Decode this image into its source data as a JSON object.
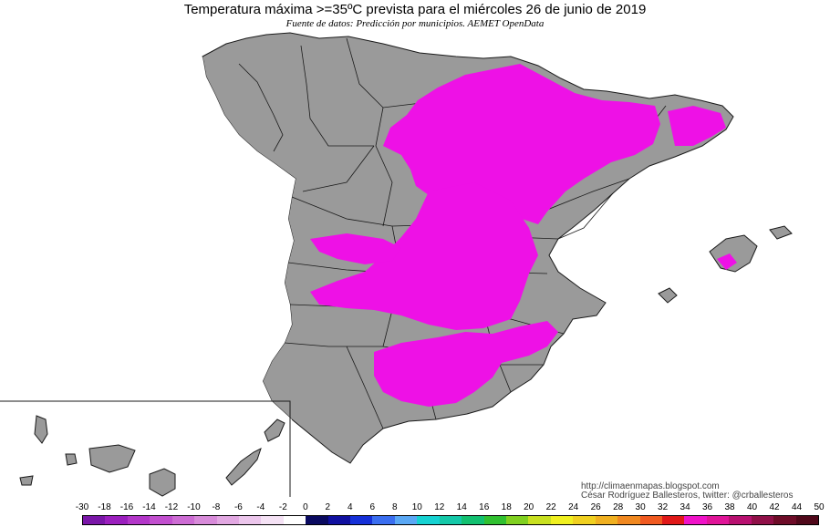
{
  "title": "Temperatura máxima >=35ºC prevista para el miércoles 26 de junio de 2019",
  "subtitle": "Fuente de datos: Predicción por municipios. AEMET OpenData",
  "credits": {
    "blog": "http://climaenmapas.blogspot.com",
    "author": "César Rodríguez Ballesteros, twitter: @crballesteros"
  },
  "colors": {
    "land": "#9a9a9a",
    "hot_zone": "#ee11e6",
    "border": "#1a1a1a",
    "sea": "#ffffff"
  },
  "legend": {
    "labels": [
      "-30",
      "-18",
      "-16",
      "-14",
      "-12",
      "-10",
      "-8",
      "-6",
      "-4",
      "-2",
      "0",
      "2",
      "4",
      "6",
      "8",
      "10",
      "12",
      "14",
      "16",
      "18",
      "20",
      "22",
      "24",
      "26",
      "28",
      "30",
      "32",
      "34",
      "36",
      "38",
      "40",
      "42",
      "44",
      "50"
    ],
    "colors": [
      "#7a16a8",
      "#9b1fbe",
      "#b336c9",
      "#c24fcf",
      "#cd6cd4",
      "#d88bda",
      "#e2a8e2",
      "#ecc6ec",
      "#f5e2f5",
      "#ffffff",
      "#0a0a60",
      "#1010a0",
      "#1530d8",
      "#3a6ef0",
      "#5aa8f5",
      "#16d2d2",
      "#14c8a8",
      "#12c070",
      "#30c030",
      "#80d020",
      "#c8e020",
      "#f0f020",
      "#f0d020",
      "#f0b020",
      "#f08820",
      "#f05a20",
      "#e01818",
      "#f012c8",
      "#e01498",
      "#b81070",
      "#901048",
      "#6e0c28",
      "#50081a"
    ]
  },
  "map": {
    "regions": [
      "Península",
      "Baleares",
      "Canarias"
    ],
    "inset": "Canarias"
  }
}
